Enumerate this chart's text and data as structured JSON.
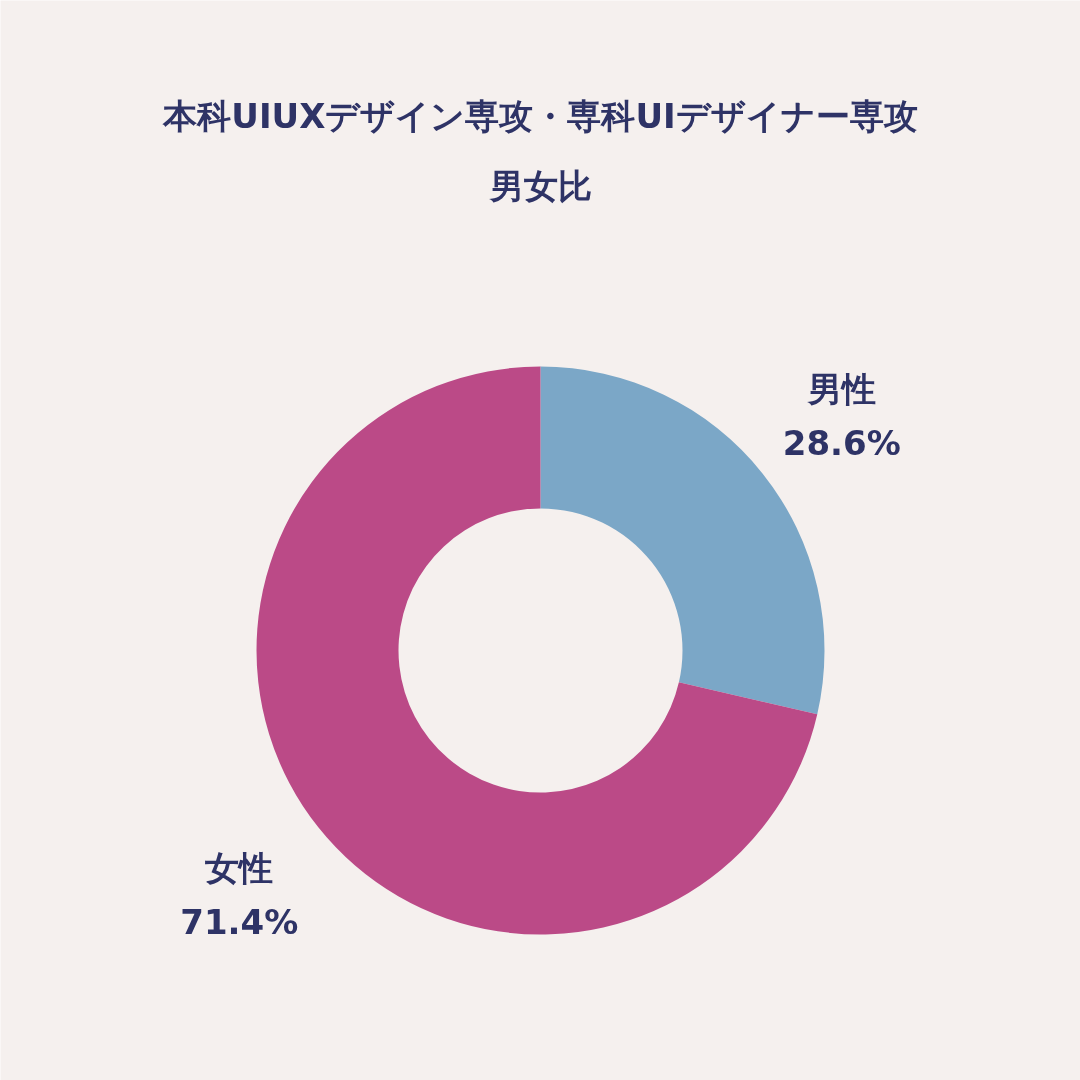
{
  "chart_data": {
    "type": "donut",
    "title": "本科UIUXデザイン専攻・専科UIデザイナー専攻",
    "subtitle": "男女比",
    "categories": [
      "男性",
      "女性"
    ],
    "values": [
      28.6,
      71.4
    ],
    "colors": [
      "#7ba7c7",
      "#bb4a87"
    ],
    "value_labels": [
      "28.6%",
      "71.4%"
    ]
  }
}
